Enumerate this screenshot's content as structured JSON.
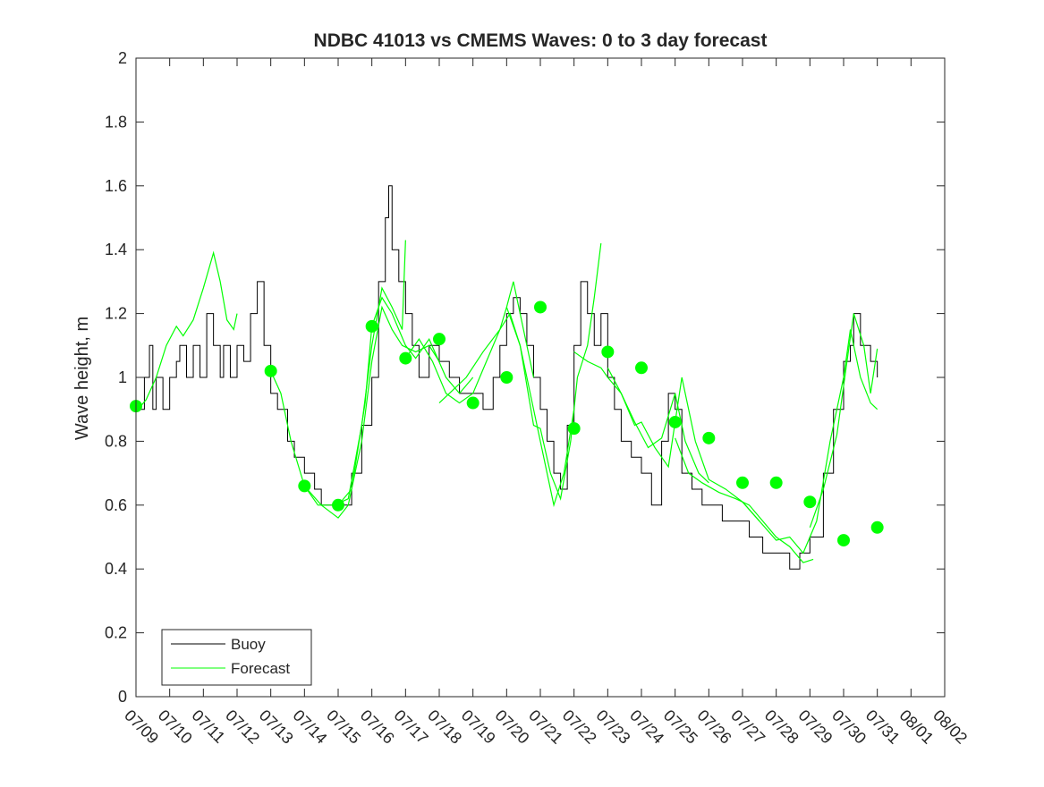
{
  "chart_data": {
    "type": "line",
    "title": "NDBC 41013 vs CMEMS Waves: 0 to 3 day forecast",
    "xlabel": "",
    "ylabel": "Wave height, m",
    "xlim": [
      "07/09",
      "08/02"
    ],
    "ylim": [
      0,
      2
    ],
    "yticks": [
      "0",
      "0.2",
      "0.4",
      "0.6",
      "0.8",
      "1",
      "1.2",
      "1.4",
      "1.6",
      "1.8",
      "2"
    ],
    "xticks": [
      "07/09",
      "07/10",
      "07/11",
      "07/12",
      "07/13",
      "07/14",
      "07/15",
      "07/16",
      "07/17",
      "07/18",
      "07/19",
      "07/20",
      "07/21",
      "07/22",
      "07/23",
      "07/24",
      "07/25",
      "07/26",
      "07/27",
      "07/28",
      "07/29",
      "07/30",
      "07/31",
      "08/01",
      "08/02"
    ],
    "legend": {
      "placement": "bottom-left",
      "entries": [
        "Buoy",
        "Forecast"
      ]
    },
    "colors": {
      "buoy": "#000000",
      "forecast": "#00ff00",
      "axes": "#262626"
    },
    "buoy": [
      [
        0.0,
        0.9
      ],
      [
        0.1,
        0.9
      ],
      [
        0.25,
        1.0
      ],
      [
        0.4,
        1.1
      ],
      [
        0.5,
        0.9
      ],
      [
        0.6,
        1.0
      ],
      [
        0.8,
        0.9
      ],
      [
        1.0,
        1.0
      ],
      [
        1.2,
        1.05
      ],
      [
        1.3,
        1.1
      ],
      [
        1.5,
        1.0
      ],
      [
        1.7,
        1.1
      ],
      [
        1.9,
        1.0
      ],
      [
        2.1,
        1.2
      ],
      [
        2.3,
        1.1
      ],
      [
        2.5,
        1.0
      ],
      [
        2.6,
        1.1
      ],
      [
        2.8,
        1.0
      ],
      [
        3.0,
        1.1
      ],
      [
        3.2,
        1.05
      ],
      [
        3.4,
        1.2
      ],
      [
        3.6,
        1.3
      ],
      [
        3.8,
        1.1
      ],
      [
        4.0,
        0.95
      ],
      [
        4.2,
        0.9
      ],
      [
        4.5,
        0.8
      ],
      [
        4.7,
        0.75
      ],
      [
        5.0,
        0.7
      ],
      [
        5.3,
        0.65
      ],
      [
        5.5,
        0.6
      ],
      [
        6.0,
        0.6
      ],
      [
        6.4,
        0.7
      ],
      [
        6.7,
        0.85
      ],
      [
        7.0,
        1.0
      ],
      [
        7.2,
        1.3
      ],
      [
        7.4,
        1.5
      ],
      [
        7.5,
        1.6
      ],
      [
        7.6,
        1.4
      ],
      [
        7.8,
        1.3
      ],
      [
        8.0,
        1.2
      ],
      [
        8.2,
        1.1
      ],
      [
        8.4,
        1.0
      ],
      [
        8.7,
        1.1
      ],
      [
        9.0,
        1.05
      ],
      [
        9.3,
        1.0
      ],
      [
        9.6,
        0.95
      ],
      [
        10.0,
        0.95
      ],
      [
        10.3,
        0.9
      ],
      [
        10.6,
        1.0
      ],
      [
        10.8,
        1.1
      ],
      [
        11.0,
        1.2
      ],
      [
        11.2,
        1.25
      ],
      [
        11.4,
        1.2
      ],
      [
        11.6,
        1.1
      ],
      [
        11.8,
        1.0
      ],
      [
        12.0,
        0.9
      ],
      [
        12.2,
        0.8
      ],
      [
        12.4,
        0.7
      ],
      [
        12.6,
        0.65
      ],
      [
        12.8,
        0.85
      ],
      [
        13.0,
        1.1
      ],
      [
        13.2,
        1.3
      ],
      [
        13.4,
        1.2
      ],
      [
        13.6,
        1.1
      ],
      [
        13.8,
        1.2
      ],
      [
        14.0,
        1.0
      ],
      [
        14.2,
        0.9
      ],
      [
        14.4,
        0.8
      ],
      [
        14.7,
        0.75
      ],
      [
        15.0,
        0.7
      ],
      [
        15.3,
        0.6
      ],
      [
        15.6,
        0.8
      ],
      [
        15.8,
        0.95
      ],
      [
        16.0,
        0.9
      ],
      [
        16.2,
        0.7
      ],
      [
        16.5,
        0.65
      ],
      [
        16.8,
        0.6
      ],
      [
        17.1,
        0.6
      ],
      [
        17.4,
        0.55
      ],
      [
        17.8,
        0.55
      ],
      [
        18.2,
        0.5
      ],
      [
        18.6,
        0.45
      ],
      [
        19.0,
        0.45
      ],
      [
        19.4,
        0.4
      ],
      [
        19.7,
        0.45
      ],
      [
        20.0,
        0.5
      ],
      [
        20.4,
        0.7
      ],
      [
        20.7,
        0.9
      ],
      [
        21.0,
        1.05
      ],
      [
        21.2,
        1.1
      ],
      [
        21.3,
        1.2
      ],
      [
        21.5,
        1.1
      ],
      [
        21.8,
        1.05
      ],
      [
        22.0,
        1.0
      ]
    ],
    "forecast_runs": [
      [
        [
          -0.1,
          0.88
        ],
        [
          0.3,
          0.93
        ],
        [
          0.6,
          1.0
        ],
        [
          0.9,
          1.1
        ],
        [
          1.2,
          1.16
        ],
        [
          1.4,
          1.13
        ],
        [
          1.7,
          1.18
        ],
        [
          2.0,
          1.28
        ],
        [
          2.3,
          1.39
        ],
        [
          2.5,
          1.3
        ],
        [
          2.7,
          1.18
        ],
        [
          2.9,
          1.15
        ],
        [
          3.0,
          1.2
        ]
      ],
      [
        [
          4.0,
          1.02
        ],
        [
          4.3,
          0.95
        ],
        [
          4.6,
          0.8
        ],
        [
          5.0,
          0.66
        ],
        [
          5.4,
          0.6
        ],
        [
          5.9,
          0.6
        ],
        [
          6.3,
          0.62
        ],
        [
          6.7,
          0.85
        ],
        [
          7.0,
          1.1
        ],
        [
          7.3,
          1.28
        ],
        [
          7.6,
          1.22
        ],
        [
          7.9,
          1.15
        ],
        [
          8.0,
          1.43
        ]
      ],
      [
        [
          5.0,
          0.66
        ],
        [
          5.5,
          0.6
        ],
        [
          6.0,
          0.56
        ],
        [
          6.3,
          0.6
        ],
        [
          6.7,
          0.8
        ],
        [
          7.0,
          1.05
        ],
        [
          7.3,
          1.22
        ],
        [
          7.6,
          1.15
        ],
        [
          7.9,
          1.1
        ],
        [
          8.3,
          1.08
        ],
        [
          8.7,
          1.1
        ],
        [
          9.0,
          1.05
        ]
      ],
      [
        [
          6.0,
          0.6
        ],
        [
          6.4,
          0.65
        ],
        [
          6.8,
          0.92
        ],
        [
          7.0,
          1.16
        ],
        [
          7.3,
          1.25
        ],
        [
          7.6,
          1.2
        ],
        [
          8.0,
          1.1
        ],
        [
          8.3,
          1.06
        ],
        [
          8.7,
          1.12
        ],
        [
          9.2,
          1.0
        ],
        [
          9.6,
          0.95
        ],
        [
          10.0,
          1.0
        ]
      ],
      [
        [
          8.0,
          1.06
        ],
        [
          8.4,
          1.12
        ],
        [
          8.8,
          1.05
        ],
        [
          9.2,
          0.95
        ],
        [
          9.6,
          0.92
        ],
        [
          10.0,
          0.95
        ],
        [
          10.4,
          1.05
        ],
        [
          10.8,
          1.15
        ],
        [
          11.0,
          1.22
        ],
        [
          11.2,
          1.3
        ],
        [
          11.5,
          1.15
        ],
        [
          11.8,
          1.0
        ]
      ],
      [
        [
          9.0,
          0.92
        ],
        [
          9.4,
          0.96
        ],
        [
          9.8,
          1.0
        ],
        [
          10.3,
          1.08
        ],
        [
          10.8,
          1.15
        ],
        [
          11.1,
          1.2
        ],
        [
          11.4,
          1.1
        ],
        [
          11.8,
          0.9
        ],
        [
          12.1,
          0.75
        ],
        [
          12.4,
          0.6
        ],
        [
          12.7,
          0.7
        ],
        [
          13.0,
          0.9
        ]
      ],
      [
        [
          11.0,
          1.22
        ],
        [
          11.4,
          1.1
        ],
        [
          11.8,
          0.85
        ],
        [
          12.0,
          0.84
        ],
        [
          12.3,
          0.7
        ],
        [
          12.6,
          0.62
        ],
        [
          12.9,
          0.8
        ],
        [
          13.1,
          1.0
        ],
        [
          13.4,
          1.1
        ],
        [
          13.6,
          1.25
        ],
        [
          13.8,
          1.42
        ]
      ],
      [
        [
          13.0,
          1.08
        ],
        [
          13.4,
          1.05
        ],
        [
          13.8,
          1.03
        ],
        [
          14.0,
          1.0
        ],
        [
          14.4,
          0.95
        ],
        [
          14.8,
          0.86
        ],
        [
          15.2,
          0.78
        ],
        [
          15.6,
          0.81
        ],
        [
          16.0,
          0.95
        ],
        [
          16.3,
          0.8
        ],
        [
          16.7,
          0.7
        ],
        [
          17.0,
          0.67
        ]
      ],
      [
        [
          14.0,
          1.03
        ],
        [
          14.4,
          0.95
        ],
        [
          14.8,
          0.85
        ],
        [
          15.0,
          0.86
        ],
        [
          15.4,
          0.78
        ],
        [
          15.8,
          0.72
        ],
        [
          16.2,
          1.0
        ],
        [
          16.6,
          0.8
        ],
        [
          17.0,
          0.68
        ],
        [
          17.5,
          0.65
        ],
        [
          18.0,
          0.61
        ],
        [
          18.5,
          0.55
        ]
      ],
      [
        [
          16.0,
          0.81
        ],
        [
          16.4,
          0.7
        ],
        [
          16.8,
          0.67
        ],
        [
          17.3,
          0.64
        ],
        [
          17.8,
          0.62
        ],
        [
          18.2,
          0.6
        ],
        [
          18.6,
          0.55
        ],
        [
          19.0,
          0.5
        ],
        [
          19.4,
          0.47
        ],
        [
          19.8,
          0.42
        ],
        [
          20.1,
          0.43
        ]
      ],
      [
        [
          18.0,
          0.61
        ],
        [
          18.5,
          0.55
        ],
        [
          19.0,
          0.49
        ],
        [
          19.4,
          0.5
        ],
        [
          19.8,
          0.45
        ],
        [
          20.2,
          0.55
        ],
        [
          20.6,
          0.8
        ],
        [
          21.0,
          1.0
        ],
        [
          21.2,
          1.15
        ],
        [
          21.5,
          1.0
        ],
        [
          21.8,
          0.92
        ],
        [
          22.0,
          0.9
        ]
      ],
      [
        [
          20.0,
          0.53
        ],
        [
          20.4,
          0.65
        ],
        [
          20.8,
          0.82
        ],
        [
          21.1,
          1.05
        ],
        [
          21.3,
          1.2
        ],
        [
          21.6,
          1.1
        ],
        [
          21.8,
          0.95
        ],
        [
          22.0,
          1.09
        ]
      ]
    ],
    "daily_points": [
      [
        0.0,
        0.91
      ],
      [
        4.0,
        1.02
      ],
      [
        5.0,
        0.66
      ],
      [
        6.0,
        0.6
      ],
      [
        7.0,
        1.16
      ],
      [
        8.0,
        1.06
      ],
      [
        9.0,
        1.12
      ],
      [
        10.0,
        0.92
      ],
      [
        11.0,
        1.0
      ],
      [
        12.0,
        1.22
      ],
      [
        13.0,
        0.84
      ],
      [
        14.0,
        1.08
      ],
      [
        15.0,
        1.03
      ],
      [
        16.0,
        0.86
      ],
      [
        17.0,
        0.81
      ],
      [
        18.0,
        0.67
      ],
      [
        19.0,
        0.67
      ],
      [
        20.0,
        0.61
      ],
      [
        21.0,
        0.49
      ],
      [
        22.0,
        0.53
      ]
    ]
  }
}
